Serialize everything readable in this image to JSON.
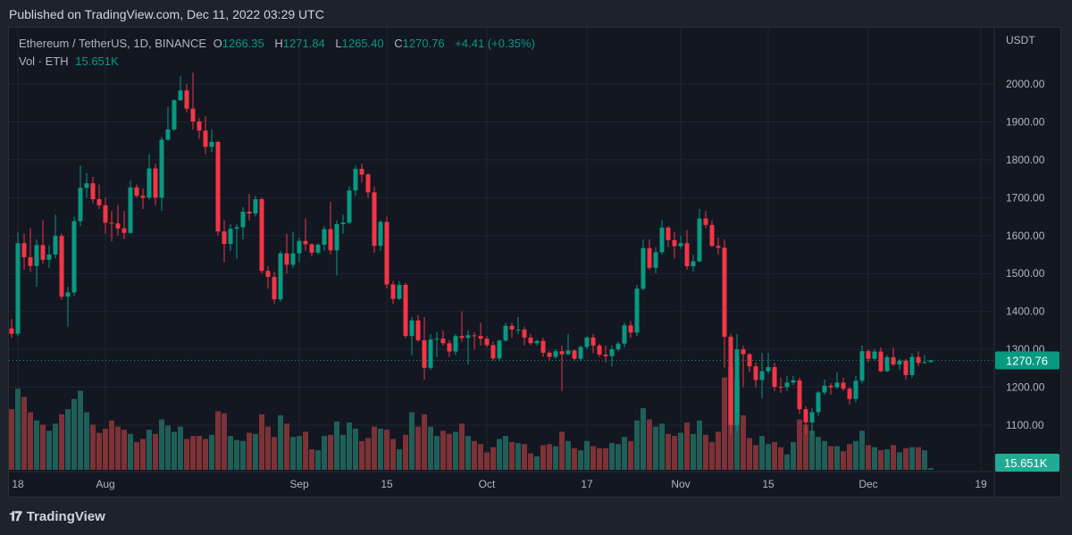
{
  "header": {
    "published": "Published on TradingView.com, Dec 11, 2022 03:29 UTC"
  },
  "legend": {
    "symbol": "Ethereum / TetherUS, 1D, BINANCE",
    "o_label": "O",
    "o": "1266.35",
    "h_label": "H",
    "h": "1271.84",
    "l_label": "L",
    "l": "1265.40",
    "c_label": "C",
    "c": "1270.76",
    "change": "+4.41 (+0.35%)",
    "vol_label": "Vol · ETH",
    "vol": "15.651K"
  },
  "footer": {
    "brand": "TradingView",
    "logo": "TV"
  },
  "colors": {
    "up": "#089981",
    "down": "#f23645",
    "vol_up": "#1f5f57",
    "vol_down": "#7c3236",
    "grid": "#1f2430",
    "axis_text": "#b2b5be"
  },
  "chart_data": {
    "type": "candlestick",
    "title": "Ethereum / TetherUS, 1D, BINANCE",
    "currency_label": "USDT",
    "ylim": [
      1030,
      2120
    ],
    "y_ticks": [
      "2000.00",
      "1900.00",
      "1800.00",
      "1700.00",
      "1600.00",
      "1500.00",
      "1400.00",
      "1300.00",
      "1200.00",
      "1100.00"
    ],
    "x_ticks": [
      {
        "label": "18",
        "day": 1
      },
      {
        "label": "Aug",
        "day": 15
      },
      {
        "label": "Sep",
        "day": 46
      },
      {
        "label": "15",
        "day": 60
      },
      {
        "label": "Oct",
        "day": 76
      },
      {
        "label": "17",
        "day": 92
      },
      {
        "label": "Nov",
        "day": 107
      },
      {
        "label": "15",
        "day": 121
      },
      {
        "label": "Dec",
        "day": 137
      },
      {
        "label": "19",
        "day": 155
      }
    ],
    "extra_tick_labels": {
      "Aug_date_label_none": ""
    },
    "last_price_label": "1270.76",
    "last_volume_label": "15.651K",
    "first_open": 1355,
    "close": [
      1341,
      1580,
      1543,
      1520,
      1575,
      1536,
      1550,
      1599,
      1439,
      1450,
      1638,
      1726,
      1738,
      1696,
      1680,
      1634,
      1632,
      1619,
      1607,
      1727,
      1705,
      1700,
      1777,
      1700,
      1853,
      1880,
      1957,
      1983,
      1935,
      1901,
      1877,
      1834,
      1847,
      1611,
      1578,
      1618,
      1622,
      1663,
      1658,
      1696,
      1507,
      1491,
      1432,
      1553,
      1523,
      1553,
      1586,
      1577,
      1555,
      1576,
      1617,
      1561,
      1630,
      1634,
      1719,
      1776,
      1761,
      1714,
      1573,
      1636,
      1471,
      1433,
      1470,
      1335,
      1376,
      1324,
      1251,
      1326,
      1328,
      1316,
      1294,
      1335,
      1330,
      1337,
      1335,
      1328,
      1311,
      1276,
      1323,
      1362,
      1352,
      1352,
      1331,
      1316,
      1322,
      1291,
      1280,
      1295,
      1287,
      1297,
      1275,
      1306,
      1331,
      1310,
      1286,
      1282,
      1300,
      1315,
      1363,
      1344,
      1460,
      1567,
      1515,
      1556,
      1621,
      1588,
      1572,
      1580,
      1519,
      1532,
      1645,
      1628,
      1573,
      1568,
      1333,
      1100,
      1300,
      1287,
      1255,
      1219,
      1242,
      1253,
      1201,
      1200,
      1212,
      1218,
      1142,
      1107,
      1134,
      1186,
      1204,
      1200,
      1212,
      1196,
      1169,
      1217,
      1295,
      1275,
      1294,
      1242,
      1279,
      1260,
      1270,
      1232,
      1280,
      1264,
      1266.35,
      1270.76
    ],
    "high": [
      1380,
      1610,
      1605,
      1620,
      1590,
      1640,
      1575,
      1655,
      1605,
      1465,
      1650,
      1785,
      1765,
      1755,
      1735,
      1700,
      1665,
      1680,
      1665,
      1745,
      1735,
      1725,
      1815,
      1790,
      1860,
      1940,
      1960,
      2020,
      2000,
      2030,
      1910,
      1915,
      1880,
      1850,
      1640,
      1630,
      1630,
      1675,
      1710,
      1705,
      1700,
      1520,
      1505,
      1560,
      1605,
      1610,
      1595,
      1645,
      1580,
      1580,
      1625,
      1690,
      1640,
      1655,
      1730,
      1785,
      1790,
      1765,
      1730,
      1640,
      1650,
      1480,
      1480,
      1475,
      1385,
      1390,
      1385,
      1340,
      1345,
      1350,
      1325,
      1340,
      1400,
      1350,
      1345,
      1370,
      1335,
      1320,
      1325,
      1370,
      1370,
      1385,
      1360,
      1340,
      1325,
      1330,
      1295,
      1300,
      1310,
      1340,
      1300,
      1310,
      1335,
      1340,
      1315,
      1310,
      1310,
      1320,
      1370,
      1375,
      1470,
      1590,
      1590,
      1570,
      1640,
      1625,
      1610,
      1600,
      1615,
      1550,
      1670,
      1665,
      1640,
      1595,
      1590,
      1340,
      1340,
      1310,
      1290,
      1265,
      1290,
      1290,
      1265,
      1225,
      1230,
      1230,
      1225,
      1150,
      1145,
      1190,
      1220,
      1210,
      1240,
      1225,
      1200,
      1230,
      1310,
      1300,
      1300,
      1305,
      1285,
      1305,
      1275,
      1275,
      1290,
      1295,
      1285,
      1271.84
    ],
    "low": [
      1330,
      1335,
      1510,
      1505,
      1465,
      1525,
      1515,
      1540,
      1430,
      1360,
      1440,
      1625,
      1700,
      1685,
      1670,
      1605,
      1585,
      1600,
      1590,
      1605,
      1700,
      1670,
      1695,
      1680,
      1665,
      1850,
      1875,
      1955,
      1925,
      1880,
      1855,
      1815,
      1820,
      1600,
      1530,
      1560,
      1540,
      1590,
      1640,
      1650,
      1500,
      1460,
      1420,
      1425,
      1500,
      1515,
      1530,
      1560,
      1545,
      1550,
      1560,
      1550,
      1495,
      1605,
      1630,
      1705,
      1740,
      1700,
      1555,
      1560,
      1460,
      1420,
      1430,
      1330,
      1285,
      1320,
      1220,
      1245,
      1280,
      1310,
      1280,
      1285,
      1320,
      1260,
      1300,
      1310,
      1305,
      1270,
      1270,
      1320,
      1330,
      1340,
      1310,
      1310,
      1310,
      1280,
      1270,
      1275,
      1190,
      1285,
      1270,
      1270,
      1300,
      1290,
      1280,
      1265,
      1255,
      1295,
      1305,
      1330,
      1335,
      1455,
      1510,
      1500,
      1550,
      1570,
      1540,
      1565,
      1510,
      1505,
      1530,
      1620,
      1570,
      1550,
      1250,
      1075,
      1085,
      1200,
      1240,
      1200,
      1170,
      1235,
      1190,
      1185,
      1190,
      1205,
      1130,
      1075,
      1075,
      1125,
      1180,
      1180,
      1195,
      1190,
      1155,
      1160,
      1210,
      1265,
      1270,
      1240,
      1240,
      1255,
      1245,
      1220,
      1225,
      1255,
      1262,
      1265.4
    ],
    "volume_k": [
      590,
      790,
      710,
      560,
      480,
      440,
      380,
      450,
      540,
      590,
      690,
      770,
      560,
      440,
      360,
      400,
      480,
      420,
      390,
      350,
      270,
      300,
      390,
      350,
      490,
      430,
      370,
      420,
      300,
      330,
      330,
      300,
      340,
      570,
      550,
      330,
      290,
      280,
      360,
      350,
      540,
      420,
      320,
      530,
      450,
      320,
      330,
      370,
      200,
      190,
      330,
      340,
      470,
      340,
      460,
      400,
      280,
      310,
      420,
      400,
      390,
      300,
      200,
      340,
      560,
      420,
      540,
      420,
      330,
      380,
      350,
      370,
      450,
      330,
      280,
      250,
      170,
      220,
      300,
      330,
      270,
      260,
      250,
      160,
      130,
      240,
      250,
      230,
      370,
      280,
      210,
      190,
      280,
      230,
      210,
      210,
      260,
      250,
      320,
      280,
      480,
      600,
      490,
      420,
      450,
      350,
      330,
      360,
      460,
      350,
      480,
      340,
      270,
      370,
      900,
      1000,
      880,
      530,
      310,
      240,
      330,
      250,
      270,
      220,
      150,
      270,
      490,
      440,
      380,
      320,
      280,
      230,
      230,
      180,
      250,
      280,
      380,
      240,
      220,
      190,
      200,
      240,
      170,
      210,
      220,
      220,
      190,
      15.651
    ]
  }
}
